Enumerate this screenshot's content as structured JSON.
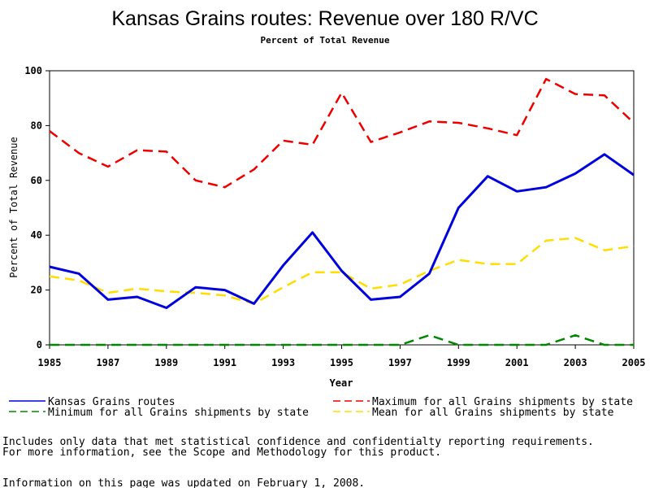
{
  "chart_data": {
    "type": "line",
    "title": "Kansas Grains routes: Revenue over 180 R/VC",
    "subtitle": "Percent of Total Revenue",
    "xlabel": "Year",
    "ylabel": "Percent of Total Revenue",
    "xlim": [
      1985,
      2005
    ],
    "ylim": [
      0,
      100
    ],
    "x_ticks": [
      "1985",
      "1987",
      "1989",
      "1991",
      "1993",
      "1995",
      "1997",
      "1999",
      "2001",
      "2003",
      "2005"
    ],
    "y_ticks": [
      "0",
      "20",
      "40",
      "60",
      "80",
      "100"
    ],
    "grid": false,
    "legend_position": "bottom",
    "x": [
      1985,
      1986,
      1987,
      1988,
      1989,
      1990,
      1991,
      1992,
      1993,
      1994,
      1995,
      1996,
      1997,
      1998,
      1999,
      2000,
      2001,
      2002,
      2003,
      2004,
      2005
    ],
    "series": [
      {
        "name": "Kansas Grains routes",
        "color": "#0000dd",
        "style": "solid",
        "values": [
          28.5,
          26,
          16.5,
          17.5,
          13.5,
          21,
          20,
          15,
          29,
          41,
          27,
          16.5,
          17.5,
          26,
          50,
          61.5,
          56,
          57.5,
          62.5,
          69.5,
          62
        ]
      },
      {
        "name": "Maximum for all Grains shipments by state",
        "color": "#ee0000",
        "style": "dashed",
        "values": [
          78,
          70,
          65,
          71,
          70.5,
          60,
          57.5,
          64,
          74.5,
          73,
          92,
          74,
          77.5,
          81.5,
          81,
          79,
          76.5,
          97,
          91.5,
          91,
          81
        ]
      },
      {
        "name": "Minimum for all Grains shipments by state",
        "color": "#008800",
        "style": "dashed",
        "values": [
          0,
          0,
          0,
          0,
          0,
          0,
          0,
          0,
          0,
          0,
          0,
          0,
          0,
          3.5,
          0,
          0,
          0,
          0,
          3.5,
          0,
          0
        ]
      },
      {
        "name": "Mean for all Grains shipments by state",
        "color": "#ffdd00",
        "style": "dashed",
        "values": [
          25,
          23.5,
          19,
          20.5,
          19.5,
          19,
          18,
          15,
          21,
          26.5,
          26.5,
          20.5,
          22,
          27,
          31,
          29.5,
          29.5,
          38,
          39,
          34.5,
          36
        ]
      }
    ]
  },
  "footnote": {
    "line1": "Includes only data that met statistical confidence and confidentialty reporting requirements.",
    "line2": "For more information, see the Scope and Methodology for this product.",
    "line3": "Information on this page was updated on February 1, 2008."
  }
}
